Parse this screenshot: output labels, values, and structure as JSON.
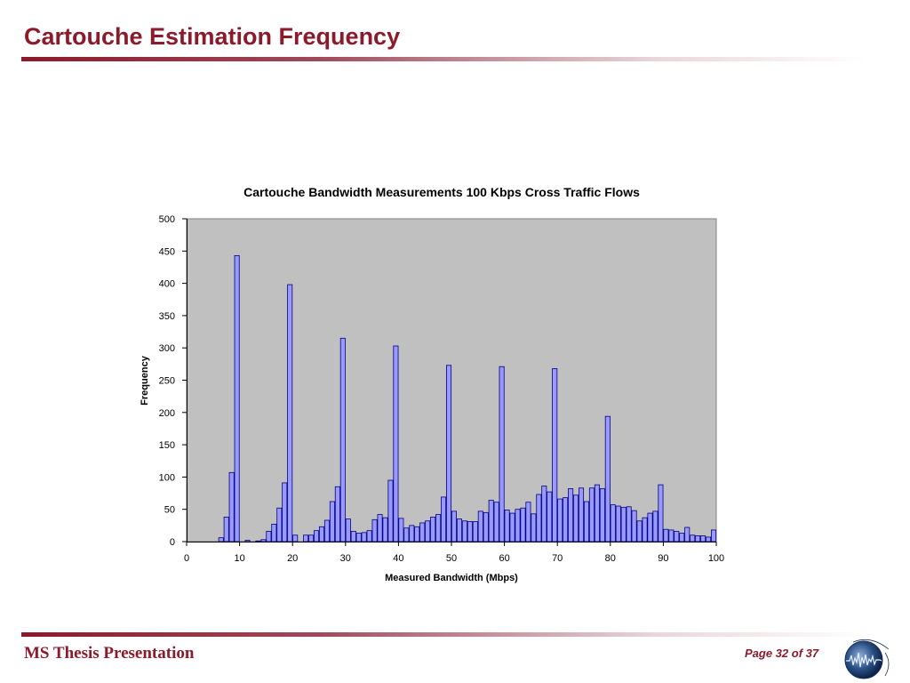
{
  "slide": {
    "title": "Cartouche Estimation Frequency",
    "footer_left": "MS Thesis Presentation",
    "footer_right": "Page 32 of 37"
  },
  "colors": {
    "accent": "#8b1a2b",
    "plot_bg": "#c0c0c0",
    "bar_fill": "#9999ff",
    "bar_stroke": "#000080"
  },
  "chart_data": {
    "type": "bar",
    "title": "Cartouche Bandwidth Measurements 100 Kbps Cross Traffic Flows",
    "xlabel": "Measured Bandwidth (Mbps)",
    "ylabel": "Frequency",
    "xlim": [
      0,
      100
    ],
    "ylim": [
      0,
      500
    ],
    "x_ticks": [
      0,
      10,
      20,
      30,
      40,
      50,
      60,
      70,
      80,
      90,
      100
    ],
    "y_ticks": [
      0,
      50,
      100,
      150,
      200,
      250,
      300,
      350,
      400,
      450,
      500
    ],
    "grid": false,
    "legend": "none",
    "x": [
      1,
      2,
      3,
      4,
      5,
      6,
      7,
      8,
      9,
      10,
      11,
      12,
      13,
      14,
      15,
      16,
      17,
      18,
      19,
      20,
      21,
      22,
      23,
      24,
      25,
      26,
      27,
      28,
      29,
      30,
      31,
      32,
      33,
      34,
      35,
      36,
      37,
      38,
      39,
      40,
      41,
      42,
      43,
      44,
      45,
      46,
      47,
      48,
      49,
      50,
      51,
      52,
      53,
      54,
      55,
      56,
      57,
      58,
      59,
      60,
      61,
      62,
      63,
      64,
      65,
      66,
      67,
      68,
      69,
      70,
      71,
      72,
      73,
      74,
      75,
      76,
      77,
      78,
      79,
      80,
      81,
      82,
      83,
      84,
      85,
      86,
      87,
      88,
      89,
      90,
      91,
      92,
      93,
      94,
      95,
      96,
      97,
      98,
      99,
      100
    ],
    "values": [
      0,
      0,
      0,
      0,
      0,
      0,
      6,
      38,
      107,
      443,
      0,
      2,
      0,
      1,
      3,
      16,
      27,
      52,
      91,
      398,
      10,
      0,
      10,
      10,
      17,
      23,
      33,
      62,
      85,
      315,
      35,
      16,
      13,
      14,
      17,
      34,
      42,
      37,
      95,
      303,
      36,
      21,
      25,
      23,
      29,
      32,
      38,
      42,
      69,
      273,
      47,
      35,
      32,
      31,
      31,
      47,
      45,
      64,
      61,
      271,
      49,
      44,
      50,
      52,
      61,
      43,
      73,
      86,
      77,
      268,
      66,
      68,
      82,
      72,
      83,
      62,
      83,
      88,
      82,
      194,
      57,
      55,
      53,
      54,
      48,
      32,
      37,
      44,
      47,
      88,
      19,
      18,
      16,
      13,
      22,
      10,
      9,
      9,
      7,
      18
    ]
  }
}
